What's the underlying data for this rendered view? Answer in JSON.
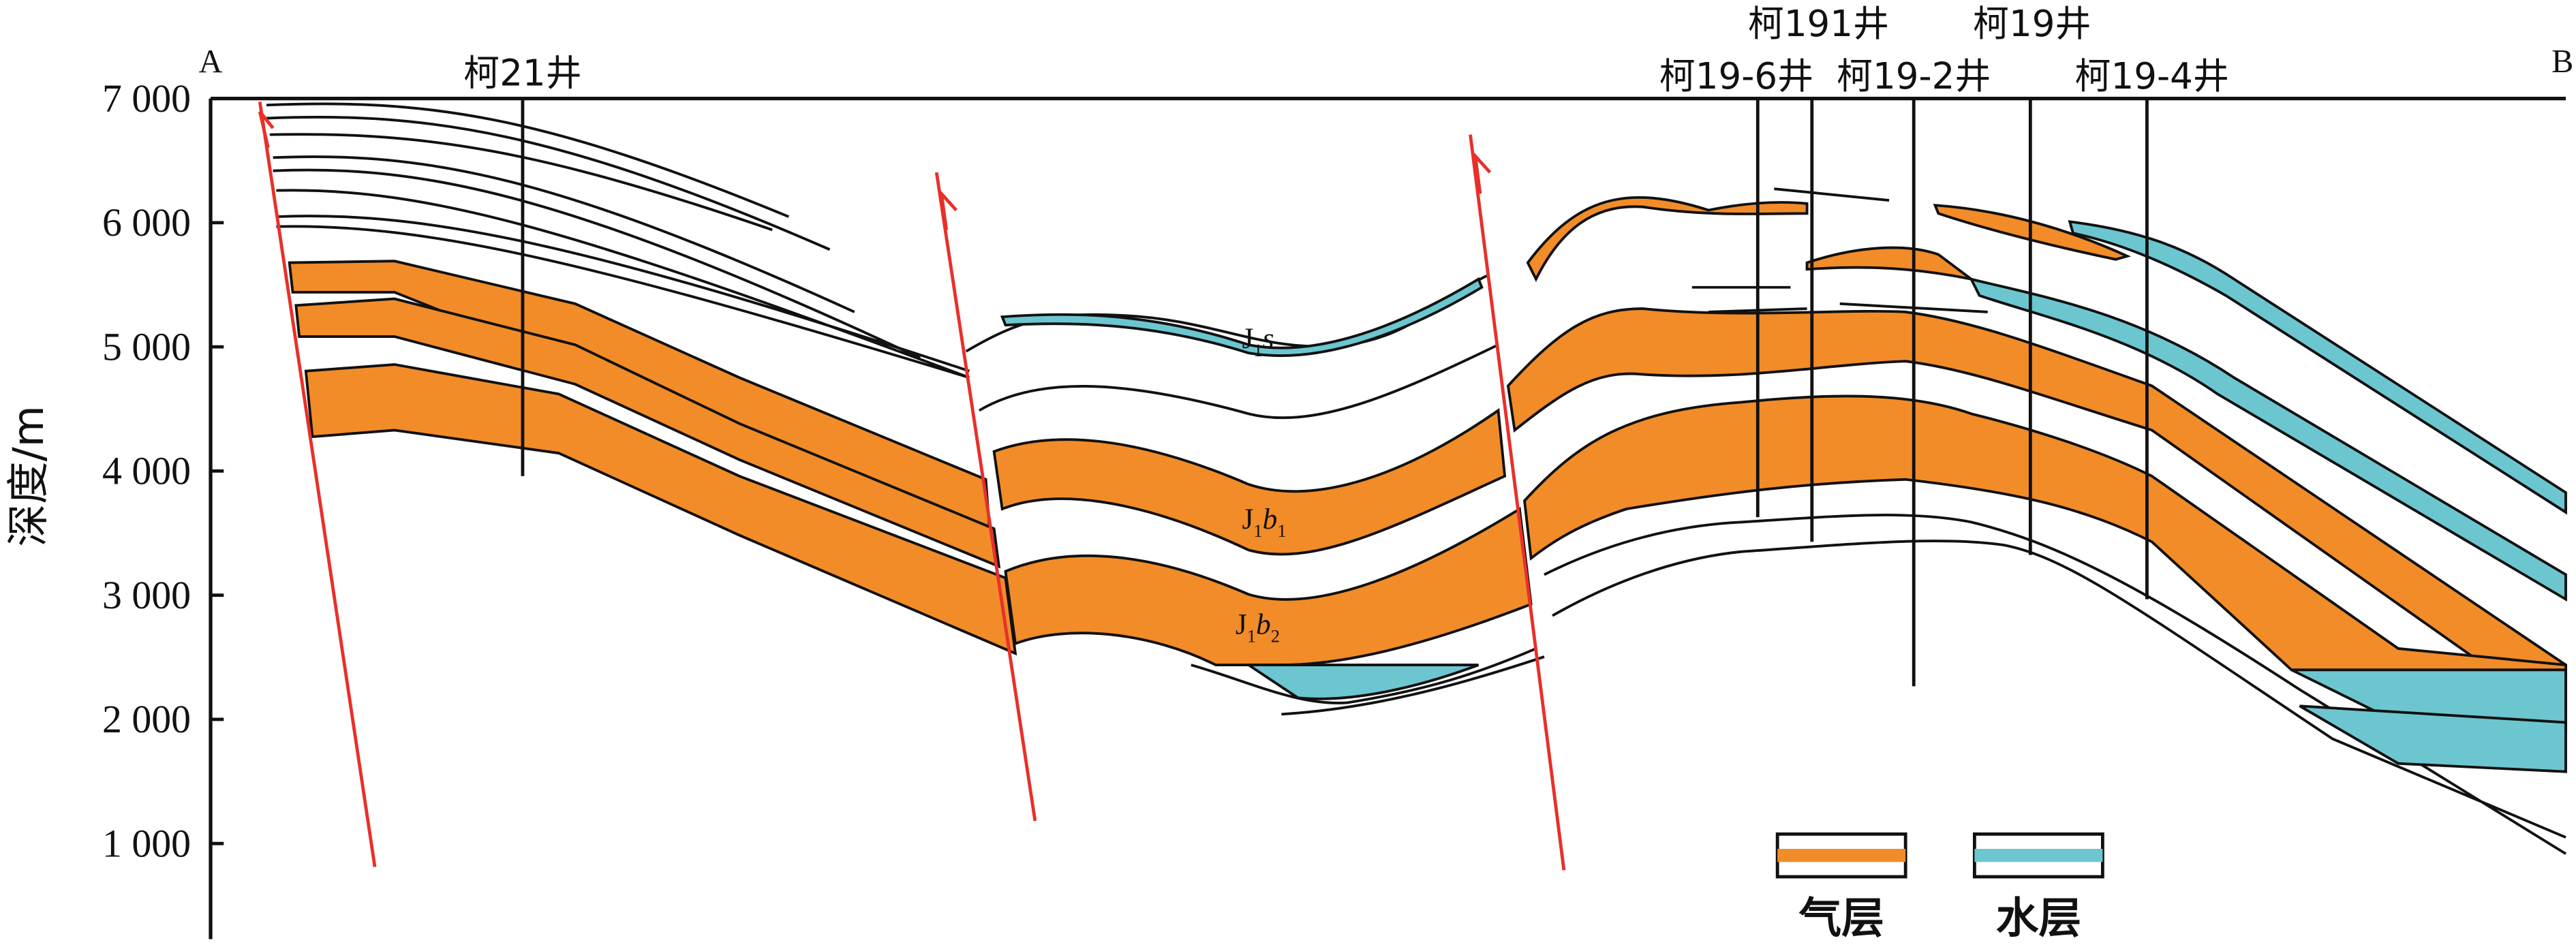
{
  "profile": {
    "start_label": "A",
    "end_label": "B"
  },
  "depth_axis": {
    "label": "深度/m",
    "lim": [
      230,
      7000
    ],
    "ticks": [
      {
        "value": 7000,
        "label": "7 000"
      },
      {
        "value": 6000,
        "label": "6 000"
      },
      {
        "value": 5000,
        "label": "5 000"
      },
      {
        "value": 4000,
        "label": "4 000"
      },
      {
        "value": 3000,
        "label": "3 000"
      },
      {
        "value": 2000,
        "label": "2 000"
      },
      {
        "value": 1000,
        "label": "1 000"
      }
    ]
  },
  "wells": [
    "柯21井",
    "柯191井",
    "柯19-6井",
    "柯19-2井",
    "柯19井",
    "柯19-4井"
  ],
  "strata_labels": [
    {
      "parts": [
        "J",
        "1",
        "s"
      ]
    },
    {
      "parts": [
        "J",
        "1",
        "b",
        "1"
      ]
    },
    {
      "parts": [
        "J",
        "1",
        "b",
        "2"
      ]
    }
  ],
  "legend": [
    "气层",
    "水层"
  ]
}
